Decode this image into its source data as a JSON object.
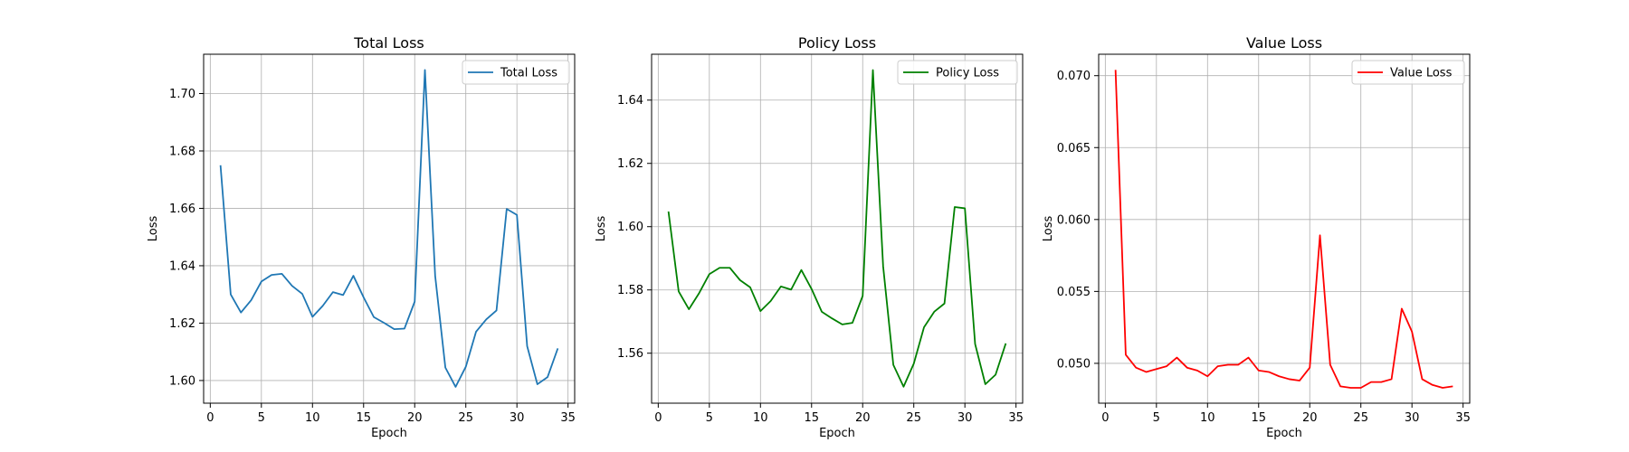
{
  "chart_data": [
    {
      "type": "line",
      "title": "Total Loss",
      "xlabel": "Epoch",
      "ylabel": "Loss",
      "grid": true,
      "legend_position": "upper right",
      "xlim": [
        -0.65,
        35.65
      ],
      "ylim": [
        1.5921,
        1.7137
      ],
      "xticks": [
        0,
        5,
        10,
        15,
        20,
        25,
        30,
        35
      ],
      "yticks": [
        1.6,
        1.62,
        1.64,
        1.66,
        1.68,
        1.7
      ],
      "ytick_decimals": 2,
      "series": [
        {
          "name": "Total Loss",
          "color": "#1f77b4",
          "x": [
            1,
            2,
            3,
            4,
            5,
            6,
            7,
            8,
            9,
            10,
            11,
            12,
            13,
            14,
            15,
            16,
            17,
            18,
            19,
            20,
            21,
            22,
            23,
            24,
            25,
            26,
            27,
            28,
            29,
            30,
            31,
            32,
            33,
            34
          ],
          "y": [
            1.675,
            1.63,
            1.6237,
            1.628,
            1.6345,
            1.6368,
            1.6372,
            1.633,
            1.6302,
            1.6222,
            1.626,
            1.6308,
            1.6298,
            1.6365,
            1.629,
            1.6221,
            1.6201,
            1.6179,
            1.6181,
            1.6275,
            1.7082,
            1.6365,
            1.6045,
            1.5978,
            1.6048,
            1.617,
            1.6213,
            1.6244,
            1.6598,
            1.6577,
            1.612,
            1.5987,
            1.6012,
            1.6112
          ]
        }
      ]
    },
    {
      "type": "line",
      "title": "Policy Loss",
      "xlabel": "Epoch",
      "ylabel": "Loss",
      "grid": true,
      "legend_position": "upper right",
      "xlim": [
        -0.65,
        35.65
      ],
      "ylim": [
        1.5442,
        1.6545
      ],
      "xticks": [
        0,
        5,
        10,
        15,
        20,
        25,
        30,
        35
      ],
      "yticks": [
        1.56,
        1.58,
        1.6,
        1.62,
        1.64
      ],
      "ytick_decimals": 2,
      "series": [
        {
          "name": "Policy Loss",
          "color": "#008000",
          "x": [
            1,
            2,
            3,
            4,
            5,
            6,
            7,
            8,
            9,
            10,
            11,
            12,
            13,
            14,
            15,
            16,
            17,
            18,
            19,
            20,
            21,
            22,
            23,
            24,
            25,
            26,
            27,
            28,
            29,
            30,
            31,
            32,
            33,
            34
          ],
          "y": [
            1.6048,
            1.5795,
            1.5739,
            1.579,
            1.585,
            1.587,
            1.587,
            1.5831,
            1.5808,
            1.5733,
            1.5765,
            1.5811,
            1.5801,
            1.5863,
            1.5803,
            1.5731,
            1.571,
            1.5691,
            1.5696,
            1.5781,
            1.6495,
            1.5875,
            1.5563,
            1.5494,
            1.5567,
            1.5682,
            1.5731,
            1.5757,
            1.6062,
            1.6058,
            1.5629,
            1.5502,
            1.5532,
            1.5631
          ]
        }
      ]
    },
    {
      "type": "line",
      "title": "Value Loss",
      "xlabel": "Epoch",
      "ylabel": "Loss",
      "grid": true,
      "legend_position": "upper right",
      "xlim": [
        -0.65,
        35.65
      ],
      "ylim": [
        0.04723,
        0.07149
      ],
      "xticks": [
        0,
        5,
        10,
        15,
        20,
        25,
        30,
        35
      ],
      "yticks": [
        0.05,
        0.055,
        0.06,
        0.065,
        0.07
      ],
      "ytick_decimals": 3,
      "series": [
        {
          "name": "Value Loss",
          "color": "#ff0000",
          "x": [
            1,
            2,
            3,
            4,
            5,
            6,
            7,
            8,
            9,
            10,
            11,
            12,
            13,
            14,
            15,
            16,
            17,
            18,
            19,
            20,
            21,
            22,
            23,
            24,
            25,
            26,
            27,
            28,
            29,
            30,
            31,
            32,
            33,
            34
          ],
          "y": [
            0.0704,
            0.0506,
            0.0497,
            0.0494,
            0.0496,
            0.0498,
            0.0504,
            0.0497,
            0.0495,
            0.0491,
            0.0498,
            0.0499,
            0.0499,
            0.0504,
            0.0495,
            0.0494,
            0.0491,
            0.0489,
            0.0488,
            0.0497,
            0.0589,
            0.0499,
            0.0484,
            0.0483,
            0.0483,
            0.0487,
            0.0487,
            0.0489,
            0.0538,
            0.0522,
            0.0489,
            0.0485,
            0.0483,
            0.0484
          ]
        }
      ]
    }
  ]
}
